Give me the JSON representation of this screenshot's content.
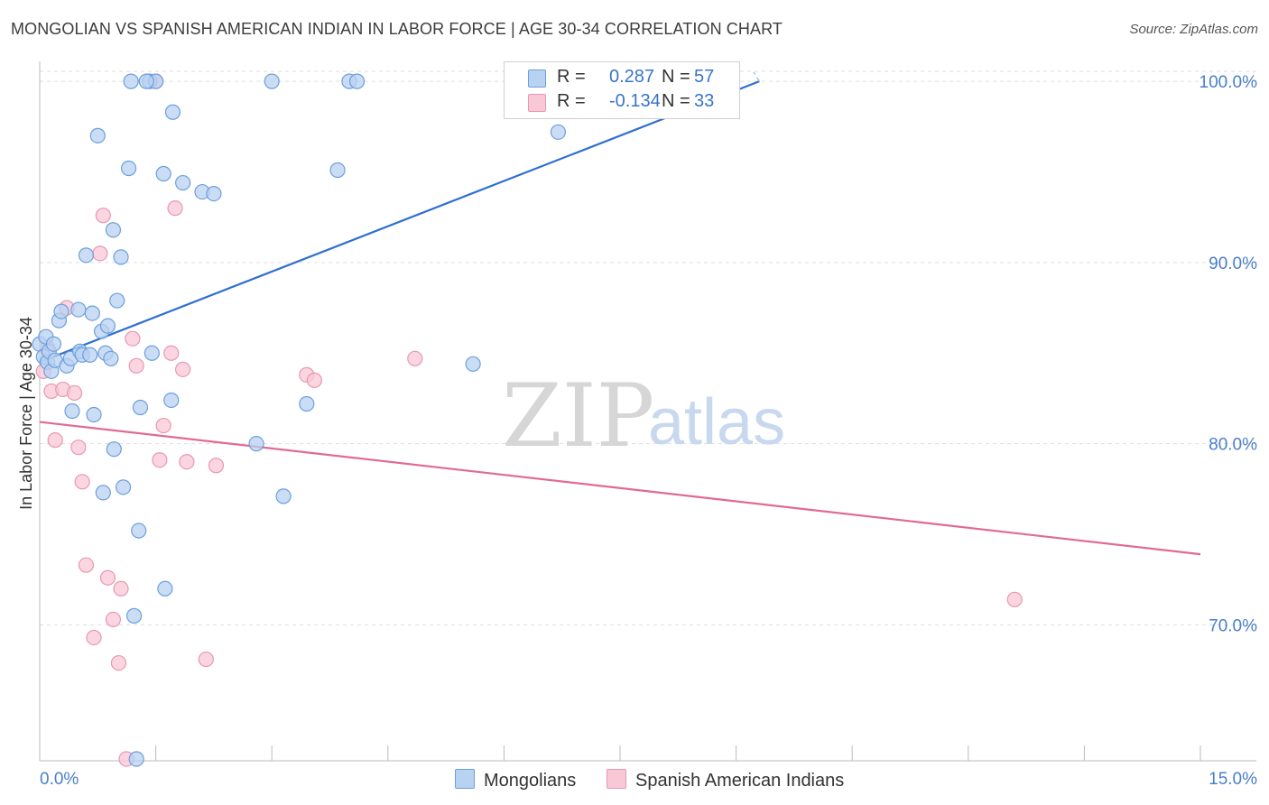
{
  "title": "MONGOLIAN VS SPANISH AMERICAN INDIAN IN LABOR FORCE | AGE 30-34 CORRELATION CHART",
  "source": "Source: ZipAtlas.com",
  "watermark": {
    "zip": "ZIP",
    "atlas": "atlas"
  },
  "legend": {
    "rows": [
      {
        "r_label": "R =",
        "r_value": "0.287",
        "n_label": "N =",
        "n_value": "57"
      },
      {
        "r_label": "R =",
        "r_value": "-0.134",
        "n_label": "N =",
        "n_value": "33"
      }
    ]
  },
  "chart_data": {
    "type": "scatter",
    "title": "MONGOLIAN VS SPANISH AMERICAN INDIAN IN LABOR FORCE | AGE 30-34 CORRELATION CHART",
    "xlabel": "",
    "ylabel": "In Labor Force | Age 30-34",
    "xlim": [
      0,
      15
    ],
    "ylim": [
      62.5,
      101.5
    ],
    "x_tick_labels": [
      "0.0%",
      "15.0%"
    ],
    "y_ticks": [
      70,
      80,
      90,
      100
    ],
    "y_tick_labels": [
      "70.0%",
      "80.0%",
      "90.0%",
      "100.0%"
    ],
    "grid": true,
    "legend_position": "top-center",
    "colors": {
      "mongolians_fill": "#b8d2f2",
      "mongolians_stroke": "#6d9fdc",
      "mongolians_line": "#2d6fd0",
      "spanish_fill": "#f9c8d7",
      "spanish_stroke": "#e897b2",
      "spanish_line": "#e06a95",
      "axis_text": "#4a7fcb",
      "grid": "#dddddd"
    },
    "series": [
      {
        "name": "Mongolians",
        "r": 0.287,
        "n": 57,
        "trend": {
          "x": [
            0,
            9.3
          ],
          "y": [
            84.5,
            100.0
          ]
        },
        "points": [
          [
            0.0,
            85.5
          ],
          [
            0.05,
            84.8
          ],
          [
            0.08,
            85.9
          ],
          [
            0.1,
            84.5
          ],
          [
            0.12,
            85.1
          ],
          [
            0.15,
            84.0
          ],
          [
            0.18,
            85.5
          ],
          [
            0.2,
            84.6
          ],
          [
            0.25,
            86.8
          ],
          [
            0.28,
            87.3
          ],
          [
            0.35,
            84.3
          ],
          [
            0.4,
            84.7
          ],
          [
            0.42,
            81.8
          ],
          [
            0.5,
            87.4
          ],
          [
            0.52,
            85.1
          ],
          [
            0.55,
            84.9
          ],
          [
            0.6,
            90.4
          ],
          [
            0.65,
            84.9
          ],
          [
            0.68,
            87.2
          ],
          [
            0.7,
            81.6
          ],
          [
            0.75,
            97.0
          ],
          [
            0.8,
            86.2
          ],
          [
            0.82,
            77.3
          ],
          [
            0.85,
            85.0
          ],
          [
            0.88,
            86.5
          ],
          [
            0.92,
            84.7
          ],
          [
            0.95,
            91.8
          ],
          [
            0.96,
            79.7
          ],
          [
            1.0,
            87.9
          ],
          [
            1.05,
            90.3
          ],
          [
            1.08,
            77.6
          ],
          [
            1.15,
            95.2
          ],
          [
            1.18,
            100.0
          ],
          [
            1.28,
            75.2
          ],
          [
            1.3,
            82.0
          ],
          [
            1.25,
            62.6
          ],
          [
            1.22,
            70.5
          ],
          [
            1.45,
            85.0
          ],
          [
            1.42,
            100.0
          ],
          [
            1.5,
            100.0
          ],
          [
            1.6,
            94.9
          ],
          [
            1.62,
            72.0
          ],
          [
            1.7,
            82.4
          ],
          [
            1.72,
            98.3
          ],
          [
            1.85,
            94.4
          ],
          [
            2.1,
            93.9
          ],
          [
            2.25,
            93.8
          ],
          [
            2.8,
            80.0
          ],
          [
            3.0,
            100.0
          ],
          [
            3.15,
            77.1
          ],
          [
            3.45,
            82.2
          ],
          [
            3.85,
            95.1
          ],
          [
            4.0,
            100.0
          ],
          [
            4.1,
            100.0
          ],
          [
            5.6,
            84.4
          ],
          [
            6.7,
            97.2
          ],
          [
            1.38,
            100.0
          ]
        ]
      },
      {
        "name": "Spanish American Indians",
        "r": -0.134,
        "n": 33,
        "trend": {
          "x": [
            0,
            15
          ],
          "y": [
            81.2,
            73.9
          ]
        },
        "points": [
          [
            0.05,
            84.0
          ],
          [
            0.1,
            85.3
          ],
          [
            0.15,
            82.9
          ],
          [
            0.2,
            80.2
          ],
          [
            0.3,
            83.0
          ],
          [
            0.35,
            87.5
          ],
          [
            0.45,
            82.8
          ],
          [
            0.5,
            79.8
          ],
          [
            0.55,
            77.9
          ],
          [
            0.6,
            73.3
          ],
          [
            0.7,
            69.3
          ],
          [
            0.78,
            90.5
          ],
          [
            0.82,
            92.6
          ],
          [
            0.88,
            72.6
          ],
          [
            0.95,
            70.3
          ],
          [
            1.02,
            67.9
          ],
          [
            1.05,
            72.0
          ],
          [
            1.12,
            62.6
          ],
          [
            1.2,
            85.8
          ],
          [
            1.25,
            84.3
          ],
          [
            1.5,
            100.0
          ],
          [
            1.55,
            79.1
          ],
          [
            1.6,
            81.0
          ],
          [
            1.7,
            85.0
          ],
          [
            1.75,
            93.0
          ],
          [
            1.85,
            84.1
          ],
          [
            1.9,
            79.0
          ],
          [
            2.15,
            68.1
          ],
          [
            2.28,
            78.8
          ],
          [
            3.45,
            83.8
          ],
          [
            3.55,
            83.5
          ],
          [
            4.85,
            84.7
          ],
          [
            12.6,
            71.4
          ]
        ]
      }
    ]
  },
  "bottom_legend": {
    "items": [
      {
        "label": "Mongolians"
      },
      {
        "label": "Spanish American Indians"
      }
    ]
  }
}
